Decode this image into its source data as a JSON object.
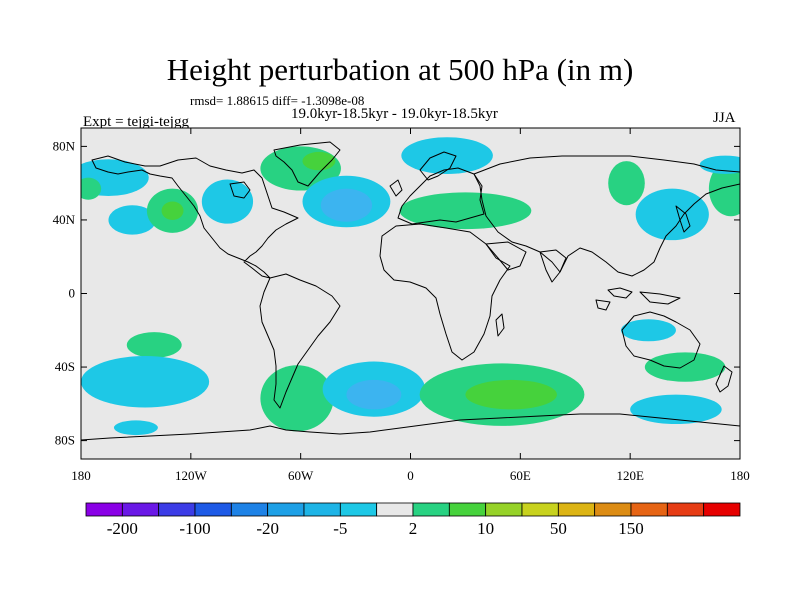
{
  "figure": {
    "title": "Height perturbation at 500 hPa (in m)",
    "stats": "rmsd= 1.88615 diff= -1.3098e-08",
    "time_span": "19.0kyr-18.5kyr - 19.0kyr-18.5kyr",
    "experiment": "Expt = tejgi-tejgg",
    "season": "JJA"
  },
  "colors": {
    "ocean_land_background": "#e8e8e8",
    "coastline": "#000000",
    "level_cyan": "#1ec8e6",
    "level_lightblue": "#3cb4f0",
    "level_green_light": "#28d282",
    "level_green": "#46d23c"
  },
  "map": {
    "projection": "cylindrical-equidistant",
    "lon_range": [
      -180,
      180
    ],
    "lat_range": [
      -90,
      90
    ],
    "lat_ticks": [
      {
        "value": 80,
        "label": "80N"
      },
      {
        "value": 40,
        "label": "40N"
      },
      {
        "value": 0,
        "label": "0"
      },
      {
        "value": -40,
        "label": "40S"
      },
      {
        "value": -80,
        "label": "80S"
      }
    ],
    "lon_ticks": [
      {
        "value": -180,
        "label": "180"
      },
      {
        "value": -120,
        "label": "120W"
      },
      {
        "value": -60,
        "label": "60W"
      },
      {
        "value": 0,
        "label": "0"
      },
      {
        "value": 60,
        "label": "60E"
      },
      {
        "value": 120,
        "label": "120E"
      },
      {
        "value": 180,
        "label": "180"
      }
    ],
    "anomalies": [
      {
        "lon": -165,
        "lat": 63,
        "rlon": 22,
        "rlat": 10,
        "level": "cyan"
      },
      {
        "lon": -176,
        "lat": 57,
        "rlon": 7,
        "rlat": 6,
        "level": "green_light"
      },
      {
        "lon": -152,
        "lat": 40,
        "rlon": 13,
        "rlat": 8,
        "level": "cyan"
      },
      {
        "lon": -130,
        "lat": 45,
        "rlon": 14,
        "rlat": 12,
        "level": "green_light"
      },
      {
        "lon": -130,
        "lat": 45,
        "rlon": 6,
        "rlat": 5,
        "level": "green"
      },
      {
        "lon": -100,
        "lat": 50,
        "rlon": 14,
        "rlat": 12,
        "level": "cyan"
      },
      {
        "lon": -60,
        "lat": 68,
        "rlon": 22,
        "rlat": 12,
        "level": "green_light"
      },
      {
        "lon": -50,
        "lat": 72,
        "rlon": 9,
        "rlat": 5,
        "level": "green"
      },
      {
        "lon": -35,
        "lat": 50,
        "rlon": 24,
        "rlat": 14,
        "level": "cyan"
      },
      {
        "lon": -35,
        "lat": 48,
        "rlon": 14,
        "rlat": 9,
        "level": "lightblue"
      },
      {
        "lon": 20,
        "lat": 75,
        "rlon": 25,
        "rlat": 10,
        "level": "cyan"
      },
      {
        "lon": 30,
        "lat": 45,
        "rlon": 36,
        "rlat": 10,
        "level": "green_light"
      },
      {
        "lon": 118,
        "lat": 60,
        "rlon": 10,
        "rlat": 12,
        "level": "green_light"
      },
      {
        "lon": 143,
        "lat": 43,
        "rlon": 20,
        "rlat": 14,
        "level": "cyan"
      },
      {
        "lon": 175,
        "lat": 57,
        "rlon": 12,
        "rlat": 15,
        "level": "green_light"
      },
      {
        "lon": 172,
        "lat": 70,
        "rlon": 14,
        "rlat": 5,
        "level": "cyan"
      },
      {
        "lon": -140,
        "lat": -28,
        "rlon": 15,
        "rlat": 7,
        "level": "green_light"
      },
      {
        "lon": -145,
        "lat": -48,
        "rlon": 35,
        "rlat": 14,
        "level": "cyan"
      },
      {
        "lon": -62,
        "lat": -57,
        "rlon": 20,
        "rlat": 18,
        "level": "green_light"
      },
      {
        "lon": -20,
        "lat": -52,
        "rlon": 28,
        "rlat": 15,
        "level": "cyan"
      },
      {
        "lon": -20,
        "lat": -55,
        "rlon": 15,
        "rlat": 8,
        "level": "lightblue"
      },
      {
        "lon": 50,
        "lat": -55,
        "rlon": 45,
        "rlat": 17,
        "level": "green_light"
      },
      {
        "lon": 55,
        "lat": -55,
        "rlon": 25,
        "rlat": 8,
        "level": "green"
      },
      {
        "lon": 150,
        "lat": -40,
        "rlon": 22,
        "rlat": 8,
        "level": "green_light"
      },
      {
        "lon": 130,
        "lat": -20,
        "rlon": 15,
        "rlat": 6,
        "level": "cyan"
      },
      {
        "lon": 145,
        "lat": -63,
        "rlon": 25,
        "rlat": 8,
        "level": "cyan"
      },
      {
        "lon": -150,
        "lat": -73,
        "rlon": 12,
        "rlat": 4,
        "level": "cyan"
      }
    ]
  },
  "colorbar": {
    "colors": [
      "#8a00e6",
      "#6a18e6",
      "#3c3ce6",
      "#1e5ae6",
      "#1e82e6",
      "#1ea0e6",
      "#1eb4e6",
      "#1ec8e6",
      "#e8e8e8",
      "#28d282",
      "#46d23c",
      "#96d228",
      "#c8d21e",
      "#dcb414",
      "#dc8c14",
      "#e66414",
      "#e63c14",
      "#e60000"
    ],
    "labels": [
      {
        "boundary": 1,
        "text": "-200"
      },
      {
        "boundary": 3,
        "text": "-100"
      },
      {
        "boundary": 5,
        "text": "-20"
      },
      {
        "boundary": 7,
        "text": "-5"
      },
      {
        "boundary": 9,
        "text": "2"
      },
      {
        "boundary": 11,
        "text": "10"
      },
      {
        "boundary": 13,
        "text": "50"
      },
      {
        "boundary": 15,
        "text": "150"
      }
    ]
  }
}
